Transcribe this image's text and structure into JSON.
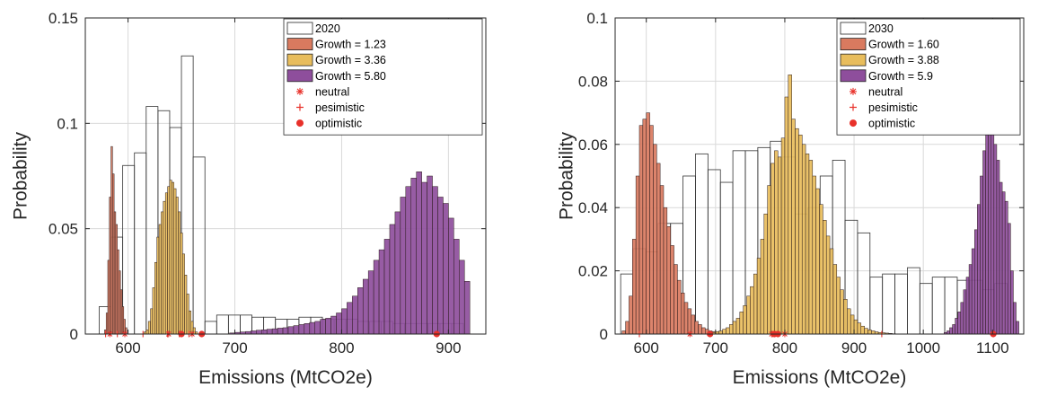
{
  "colors": {
    "growth_low": "#d97a5f",
    "growth_mid": "#e8bd5c",
    "growth_high": "#8e4e9c",
    "marker": "#e8312a",
    "baseline_face": "#ffffff",
    "baseline_edge": "#333333"
  },
  "chart_data": [
    {
      "type": "bar",
      "subtype": "histogram",
      "xlabel": "Emissions (MtCO2e)",
      "ylabel": "Probability",
      "xlim": [
        560,
        935
      ],
      "ylim": [
        0,
        0.15
      ],
      "xticks": [
        600,
        700,
        800,
        900
      ],
      "yticks": [
        0,
        0.05,
        0.1,
        0.15
      ],
      "ytick_labels": [
        "0",
        "0.05",
        "0.1",
        "0.15"
      ],
      "grid": true,
      "legend_position": "top-right",
      "series": [
        {
          "name": "2020",
          "style": "outline",
          "bin_edges": [
            573,
            584,
            595,
            606,
            617,
            628,
            639,
            650,
            661,
            672,
            683,
            694,
            705,
            716,
            727,
            738,
            749,
            760,
            771,
            782,
            793,
            804,
            815,
            826,
            837,
            848,
            859,
            870,
            881,
            892,
            903,
            914
          ],
          "values": [
            0.013,
            0.046,
            0.08,
            0.086,
            0.108,
            0.106,
            0.098,
            0.132,
            0.084,
            0.006,
            0.009,
            0.009,
            0.009,
            0.008,
            0.008,
            0.007,
            0.007,
            0.008,
            0.008,
            0.007,
            0.007,
            0.007,
            0.006,
            0.006,
            0.006,
            0.005,
            0.005,
            0.005,
            0.005,
            0.005,
            0.005
          ]
        },
        {
          "name": "Growth = 1.23",
          "style": "filled",
          "bin_edges": [
            578,
            579.5,
            581,
            582.5,
            584,
            585.5,
            587,
            588.5,
            590,
            591.5,
            593,
            594.5,
            596,
            597.5,
            599
          ],
          "values": [
            0.002,
            0.01,
            0.035,
            0.065,
            0.089,
            0.076,
            0.058,
            0.052,
            0.04,
            0.03,
            0.021,
            0.013,
            0.007,
            0.003
          ]
        },
        {
          "name": "Growth = 3.36",
          "style": "filled",
          "bin_edges": [
            615,
            617,
            619,
            621,
            623,
            625,
            627,
            629,
            631,
            633,
            635,
            637,
            639,
            641,
            643,
            645,
            647,
            649,
            651,
            653,
            655,
            657,
            659,
            661,
            663,
            665
          ],
          "values": [
            0.001,
            0.002,
            0.006,
            0.012,
            0.022,
            0.034,
            0.046,
            0.052,
            0.058,
            0.063,
            0.067,
            0.07,
            0.073,
            0.072,
            0.069,
            0.065,
            0.058,
            0.048,
            0.038,
            0.028,
            0.019,
            0.011,
            0.006,
            0.003,
            0.001
          ]
        },
        {
          "name": "Growth = 5.80",
          "style": "filled",
          "bin_edges": [
            695,
            700,
            705,
            710,
            715,
            720,
            725,
            730,
            735,
            740,
            745,
            750,
            755,
            760,
            765,
            770,
            775,
            780,
            785,
            790,
            795,
            800,
            805,
            810,
            815,
            820,
            825,
            830,
            835,
            840,
            845,
            850,
            855,
            860,
            865,
            870,
            875,
            880,
            885,
            890,
            895,
            900,
            905,
            910,
            915,
            920
          ],
          "values": [
            0.0005,
            0.0008,
            0.001,
            0.0012,
            0.0015,
            0.0018,
            0.002,
            0.0023,
            0.0025,
            0.0028,
            0.003,
            0.0035,
            0.004,
            0.0045,
            0.005,
            0.0055,
            0.006,
            0.007,
            0.0075,
            0.0085,
            0.01,
            0.012,
            0.015,
            0.018,
            0.022,
            0.026,
            0.03,
            0.035,
            0.04,
            0.045,
            0.052,
            0.058,
            0.065,
            0.07,
            0.074,
            0.077,
            0.072,
            0.075,
            0.07,
            0.065,
            0.062,
            0.055,
            0.045,
            0.035,
            0.025
          ]
        },
        {
          "name": "neutral",
          "style": "marker-star",
          "points": [
            [
              583,
              0
            ],
            [
              597,
              0
            ],
            [
              638,
              0
            ],
            [
              660,
              0
            ]
          ]
        },
        {
          "name": "pesimistic",
          "style": "marker-plus",
          "points": [
            [
              579,
              0
            ],
            [
              590,
              0
            ],
            [
              614,
              0
            ],
            [
              637,
              0
            ],
            [
              648,
              0
            ],
            [
              657,
              0
            ]
          ]
        },
        {
          "name": "optimistic",
          "style": "marker-dot",
          "points": [
            [
              650,
              0
            ],
            [
              669,
              0
            ],
            [
              889,
              0
            ]
          ]
        }
      ]
    },
    {
      "type": "bar",
      "subtype": "histogram",
      "xlabel": "Emissions (MtCO2e)",
      "ylabel": "Probability",
      "xlim": [
        555,
        1145
      ],
      "ylim": [
        0,
        0.1
      ],
      "xticks": [
        600,
        700,
        800,
        900,
        1000,
        1100
      ],
      "yticks": [
        0,
        0.02,
        0.04,
        0.06,
        0.08,
        0.1
      ],
      "ytick_labels": [
        "0",
        "0.02",
        "0.04",
        "0.06",
        "0.08",
        "0.1"
      ],
      "grid": true,
      "legend_position": "top-right",
      "series": [
        {
          "name": "2030",
          "style": "outline",
          "bin_edges": [
            563,
            581,
            599,
            617,
            635,
            653,
            671,
            689,
            707,
            725,
            743,
            761,
            779,
            797,
            815,
            833,
            851,
            869,
            887,
            905,
            923,
            941,
            959,
            977,
            995,
            1013,
            1031,
            1049,
            1067,
            1085,
            1103,
            1121
          ],
          "values": [
            0.019,
            0.027,
            0.026,
            0.035,
            0.035,
            0.05,
            0.057,
            0.052,
            0.048,
            0.058,
            0.058,
            0.059,
            0.061,
            0.056,
            0.038,
            0.04,
            0.05,
            0.055,
            0.036,
            0.032,
            0.018,
            0.019,
            0.019,
            0.021,
            0.016,
            0.018,
            0.018,
            0.017,
            0.017,
            0.014,
            0.016
          ]
        },
        {
          "name": "Growth = 1.60",
          "style": "filled",
          "bin_edges": [
            565,
            570,
            575,
            580,
            585,
            590,
            595,
            600,
            605,
            610,
            615,
            620,
            625,
            630,
            635,
            640,
            645,
            650,
            655,
            660,
            665,
            670,
            675,
            680,
            685,
            690,
            695,
            700,
            705,
            710
          ],
          "values": [
            0.001,
            0.004,
            0.012,
            0.03,
            0.05,
            0.066,
            0.068,
            0.07,
            0.066,
            0.06,
            0.054,
            0.047,
            0.04,
            0.034,
            0.028,
            0.022,
            0.017,
            0.013,
            0.01,
            0.008,
            0.006,
            0.004,
            0.003,
            0.002,
            0.0015,
            0.001,
            0.0008,
            0.0005,
            0.0003
          ]
        },
        {
          "name": "Growth = 3.88",
          "style": "filled",
          "bin_edges": [
            690,
            695,
            700,
            705,
            710,
            715,
            720,
            725,
            730,
            735,
            740,
            745,
            750,
            755,
            760,
            765,
            770,
            775,
            780,
            785,
            790,
            795,
            800,
            805,
            810,
            815,
            820,
            825,
            830,
            835,
            840,
            845,
            850,
            855,
            860,
            865,
            870,
            875,
            880,
            885,
            890,
            895,
            900,
            905,
            910,
            915,
            920,
            925,
            930,
            935,
            940,
            945,
            950,
            955,
            960
          ],
          "values": [
            0.0003,
            0.0005,
            0.0008,
            0.001,
            0.0015,
            0.002,
            0.003,
            0.004,
            0.005,
            0.007,
            0.009,
            0.012,
            0.015,
            0.019,
            0.024,
            0.03,
            0.038,
            0.047,
            0.054,
            0.058,
            0.056,
            0.062,
            0.075,
            0.082,
            0.068,
            0.065,
            0.063,
            0.06,
            0.057,
            0.055,
            0.05,
            0.046,
            0.041,
            0.036,
            0.031,
            0.027,
            0.022,
            0.018,
            0.014,
            0.011,
            0.008,
            0.006,
            0.0045,
            0.0035,
            0.0025,
            0.0018,
            0.0013,
            0.001,
            0.0007,
            0.0005,
            0.0004,
            0.0003,
            0.0002,
            0.0001
          ]
        },
        {
          "name": "Growth = 5.9",
          "style": "filled",
          "bin_edges": [
            1030,
            1034,
            1038,
            1042,
            1046,
            1050,
            1054,
            1058,
            1062,
            1066,
            1070,
            1074,
            1078,
            1082,
            1086,
            1090,
            1094,
            1098,
            1102,
            1106,
            1110,
            1114,
            1118,
            1122,
            1126,
            1130,
            1134,
            1138
          ],
          "values": [
            0.0005,
            0.001,
            0.002,
            0.003,
            0.005,
            0.007,
            0.01,
            0.014,
            0.018,
            0.022,
            0.027,
            0.033,
            0.041,
            0.05,
            0.058,
            0.065,
            0.072,
            0.081,
            0.06,
            0.055,
            0.048,
            0.045,
            0.042,
            0.035,
            0.02,
            0.01,
            0.004
          ]
        },
        {
          "name": "neutral",
          "style": "marker-star",
          "points": [
            [
              663,
              0
            ],
            [
              781,
              0
            ],
            [
              800,
              0
            ]
          ]
        },
        {
          "name": "pesimistic",
          "style": "marker-plus",
          "points": [
            [
              590,
              0
            ],
            [
              782,
              0
            ],
            [
              940,
              0
            ]
          ]
        },
        {
          "name": "optimistic",
          "style": "marker-dot",
          "points": [
            [
              692,
              0
            ],
            [
              785,
              0
            ],
            [
              790,
              0
            ],
            [
              1101,
              0
            ]
          ]
        }
      ]
    }
  ]
}
